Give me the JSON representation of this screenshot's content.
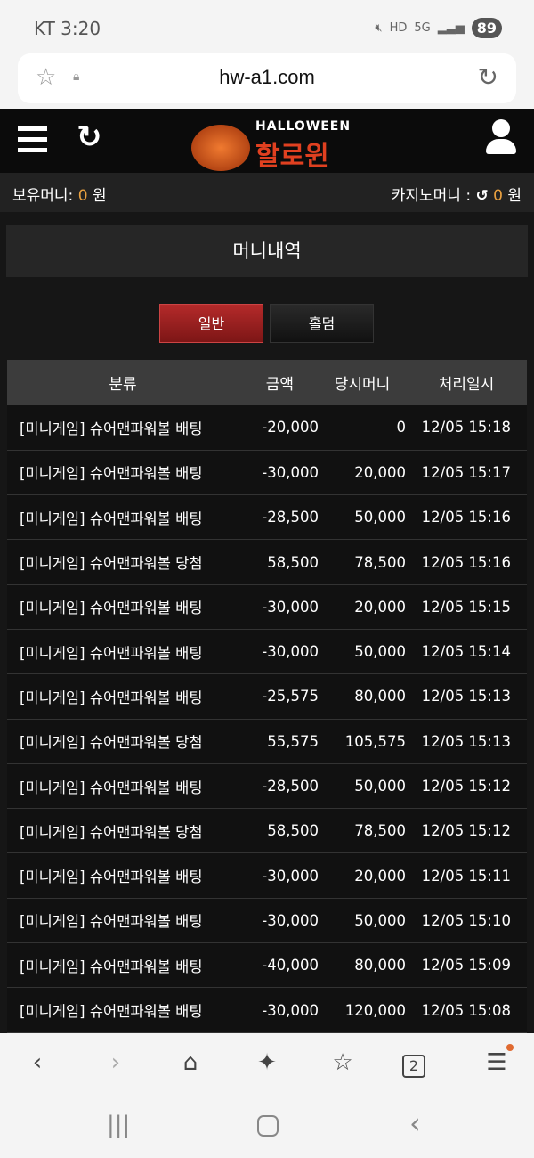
{
  "status_bar": {
    "carrier_time": "KT 3:20",
    "battery": "89",
    "network": "5G",
    "hd": "HD"
  },
  "browser": {
    "url": "hw-a1.com",
    "tab_count": "2"
  },
  "site": {
    "logo_top": "HALLOWEEN",
    "logo_main": "할로윈"
  },
  "money": {
    "held_label": "보유머니:",
    "held_value": "0",
    "unit": "원",
    "casino_label": "카지노머니 :",
    "casino_value": "0",
    "accent": "#e8a040"
  },
  "page_title": "머니내역",
  "tabs": [
    {
      "label": "일반",
      "active": true
    },
    {
      "label": "홀덤",
      "active": false
    }
  ],
  "table": {
    "headers": [
      "분류",
      "금액",
      "당시머니",
      "처리일시"
    ],
    "rows": [
      [
        "[미니게임] 슈어맨파워볼 배팅",
        "-20,000",
        "0",
        "12/05 15:18"
      ],
      [
        "[미니게임] 슈어맨파워볼 배팅",
        "-30,000",
        "20,000",
        "12/05 15:17"
      ],
      [
        "[미니게임] 슈어맨파워볼 배팅",
        "-28,500",
        "50,000",
        "12/05 15:16"
      ],
      [
        "[미니게임] 슈어맨파워볼 당첨",
        "58,500",
        "78,500",
        "12/05 15:16"
      ],
      [
        "[미니게임] 슈어맨파워볼 배팅",
        "-30,000",
        "20,000",
        "12/05 15:15"
      ],
      [
        "[미니게임] 슈어맨파워볼 배팅",
        "-30,000",
        "50,000",
        "12/05 15:14"
      ],
      [
        "[미니게임] 슈어맨파워볼 배팅",
        "-25,575",
        "80,000",
        "12/05 15:13"
      ],
      [
        "[미니게임] 슈어맨파워볼 당첨",
        "55,575",
        "105,575",
        "12/05 15:13"
      ],
      [
        "[미니게임] 슈어맨파워볼 배팅",
        "-28,500",
        "50,000",
        "12/05 15:12"
      ],
      [
        "[미니게임] 슈어맨파워볼 당첨",
        "58,500",
        "78,500",
        "12/05 15:12"
      ],
      [
        "[미니게임] 슈어맨파워볼 배팅",
        "-30,000",
        "20,000",
        "12/05 15:11"
      ],
      [
        "[미니게임] 슈어맨파워볼 배팅",
        "-30,000",
        "50,000",
        "12/05 15:10"
      ],
      [
        "[미니게임] 슈어맨파워볼 배팅",
        "-40,000",
        "80,000",
        "12/05 15:09"
      ],
      [
        "[미니게임] 슈어맨파워볼 배팅",
        "-30,000",
        "120,000",
        "12/05 15:08"
      ]
    ]
  }
}
